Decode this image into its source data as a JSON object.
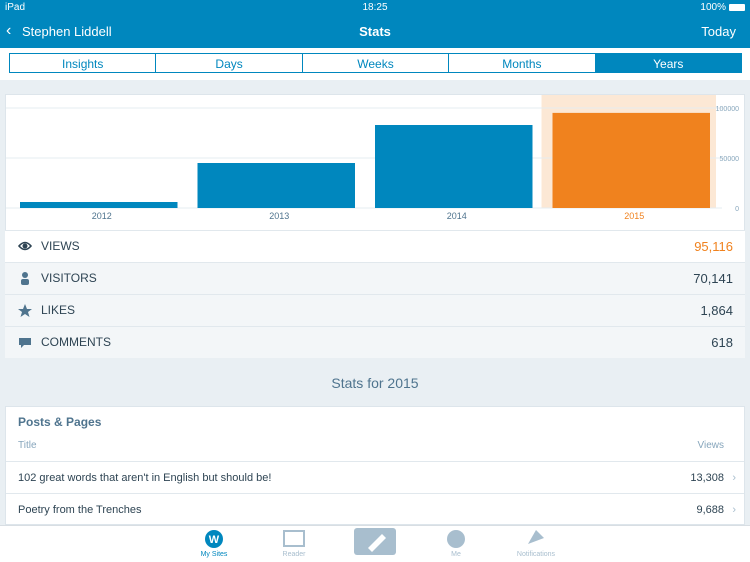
{
  "status": {
    "device": "iPad",
    "time": "18:25",
    "battery": "100%"
  },
  "nav": {
    "back": "Stephen Liddell",
    "title": "Stats",
    "right": "Today"
  },
  "tabs": {
    "items": [
      "Insights",
      "Days",
      "Weeks",
      "Months",
      "Years"
    ],
    "selected": 4
  },
  "chart_data": {
    "type": "bar",
    "categories": [
      "2012",
      "2013",
      "2014",
      "2015"
    ],
    "values": [
      6000,
      45000,
      83000,
      95116
    ],
    "color": "#0087be",
    "highlight_color": "#f0821e",
    "selected": 3,
    "ylim": [
      0,
      113000
    ],
    "yticks": [
      0,
      50000,
      100000
    ],
    "grid": true
  },
  "summary": {
    "rows": [
      {
        "label": "VIEWS",
        "value": "95,116"
      },
      {
        "label": "VISITORS",
        "value": "70,141"
      },
      {
        "label": "LIKES",
        "value": "1,864"
      },
      {
        "label": "COMMENTS",
        "value": "618"
      }
    ]
  },
  "section_title": "Stats for 2015",
  "posts": {
    "title": "Posts & Pages",
    "columns": [
      "Title",
      "Views"
    ],
    "rows": [
      [
        "102 great words that aren't in English but should be!",
        "13,308"
      ],
      [
        "Poetry from the Trenches",
        "9,688"
      ]
    ]
  },
  "tabbar": {
    "items": [
      "My Sites",
      "Reader",
      "Me",
      "Notifications"
    ],
    "selected": 0
  }
}
